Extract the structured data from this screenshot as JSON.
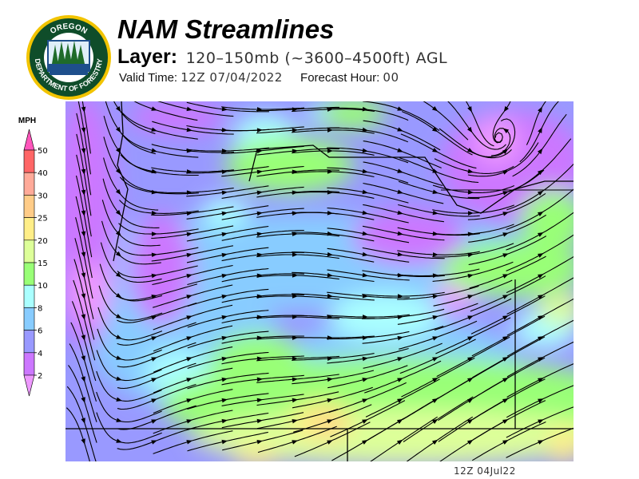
{
  "header": {
    "title": "NAM Streamlines",
    "layer_label": "Layer:",
    "layer_value": "120–150mb (~3600–4500ft) AGL",
    "valid_time_label": "Valid Time:",
    "valid_time_value": "12Z 07/04/2022",
    "forecast_hour_label": "Forecast Hour:",
    "forecast_hour_value": "00"
  },
  "logo": {
    "top_text": "OREGON",
    "bottom_text": "DEPARTMENT OF FORESTRY",
    "colors": {
      "ring": "#f2c400",
      "field": "#0f4d2a",
      "water": "#1e4f8c"
    }
  },
  "legend": {
    "unit": "MPH",
    "ticks": [
      "50",
      "40",
      "30",
      "25",
      "20",
      "15",
      "10",
      "8",
      "6",
      "4",
      "2"
    ],
    "colors_top_to_bottom": [
      "#ff55bb",
      "#ff6666",
      "#ffaa99",
      "#ffcc88",
      "#ffee88",
      "#ddff99",
      "#99ff77",
      "#aaffff",
      "#88ccff",
      "#9999ff",
      "#cc77ff",
      "#ee99ff"
    ]
  },
  "map": {
    "timestamp": "12Z  04Jul22"
  }
}
